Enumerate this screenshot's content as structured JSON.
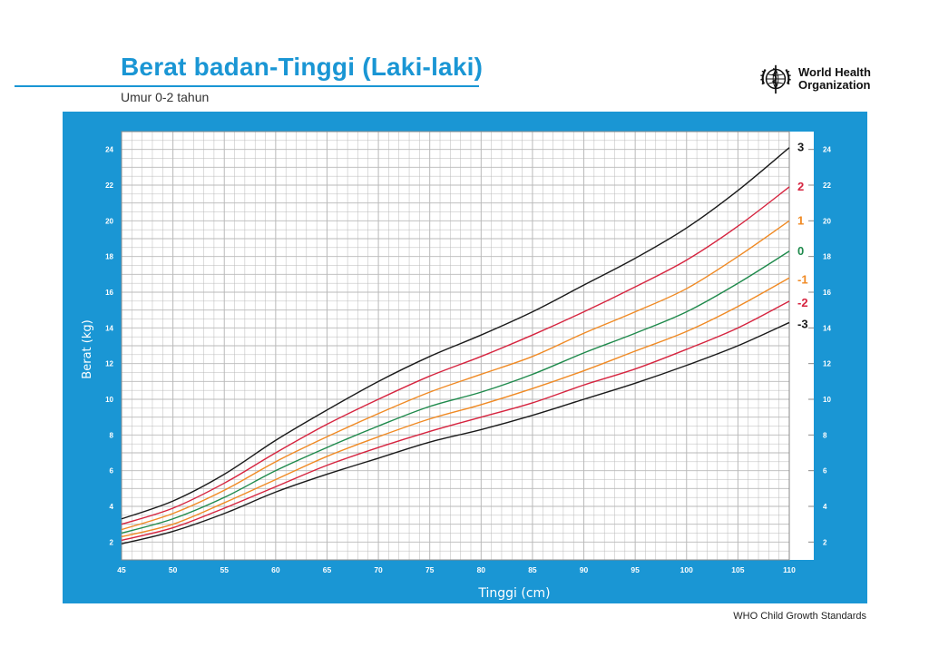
{
  "header": {
    "title": "Berat badan-Tinggi (Laki-laki)",
    "subtitle": "Umur 0-2 tahun",
    "logo_lines": [
      "World Health",
      "Organization"
    ],
    "logo_icon": "who-emblem-icon"
  },
  "footer": {
    "text": "WHO Child Growth Standards"
  },
  "colors": {
    "panel": "#1a96d4",
    "grid": "#b9b9b9",
    "sd3": "#1a1a1a",
    "sd2": "#d6243f",
    "sd1": "#f08a24",
    "sd0": "#1f8a4c"
  },
  "chart_data": {
    "type": "line",
    "title": "Berat badan-Tinggi (Laki-laki)",
    "subtitle": "Umur 0-2 tahun",
    "xlabel": "Tinggi (cm)",
    "ylabel": "Berat (kg)",
    "xlim": [
      45,
      110
    ],
    "ylim": [
      1,
      25
    ],
    "x_ticks": [
      45,
      50,
      55,
      60,
      65,
      70,
      75,
      80,
      85,
      90,
      95,
      100,
      105,
      110
    ],
    "y_ticks": [
      2,
      4,
      6,
      8,
      10,
      12,
      14,
      16,
      18,
      20,
      22,
      24
    ],
    "grid": true,
    "legend": "right",
    "x": [
      45,
      50,
      55,
      60,
      65,
      70,
      75,
      80,
      85,
      90,
      95,
      100,
      105,
      110
    ],
    "series": [
      {
        "name": "3",
        "color": "#1a1a1a",
        "values": [
          3.3,
          4.3,
          5.8,
          7.7,
          9.4,
          11.0,
          12.4,
          13.6,
          14.9,
          16.4,
          17.9,
          19.6,
          21.7,
          24.1
        ]
      },
      {
        "name": "2",
        "color": "#d6243f",
        "values": [
          3.0,
          3.9,
          5.3,
          7.0,
          8.6,
          10.0,
          11.3,
          12.4,
          13.6,
          14.9,
          16.3,
          17.8,
          19.7,
          21.9
        ]
      },
      {
        "name": "1",
        "color": "#f08a24",
        "values": [
          2.7,
          3.6,
          4.9,
          6.5,
          7.9,
          9.2,
          10.4,
          11.4,
          12.4,
          13.7,
          14.9,
          16.2,
          18.0,
          20.0
        ]
      },
      {
        "name": "0",
        "color": "#1f8a4c",
        "values": [
          2.5,
          3.3,
          4.5,
          6.0,
          7.3,
          8.5,
          9.6,
          10.4,
          11.4,
          12.6,
          13.7,
          14.9,
          16.5,
          18.3
        ]
      },
      {
        "name": "-1",
        "color": "#f08a24",
        "values": [
          2.3,
          3.0,
          4.2,
          5.5,
          6.8,
          7.9,
          8.9,
          9.7,
          10.6,
          11.6,
          12.7,
          13.8,
          15.2,
          16.8
        ]
      },
      {
        "name": "-2",
        "color": "#d6243f",
        "values": [
          2.1,
          2.8,
          3.9,
          5.1,
          6.3,
          7.3,
          8.2,
          9.0,
          9.8,
          10.8,
          11.7,
          12.8,
          14.0,
          15.5
        ]
      },
      {
        "name": "-3",
        "color": "#1a1a1a",
        "values": [
          1.9,
          2.6,
          3.6,
          4.8,
          5.8,
          6.7,
          7.6,
          8.3,
          9.1,
          10.0,
          10.9,
          11.9,
          13.0,
          14.3
        ]
      }
    ]
  }
}
